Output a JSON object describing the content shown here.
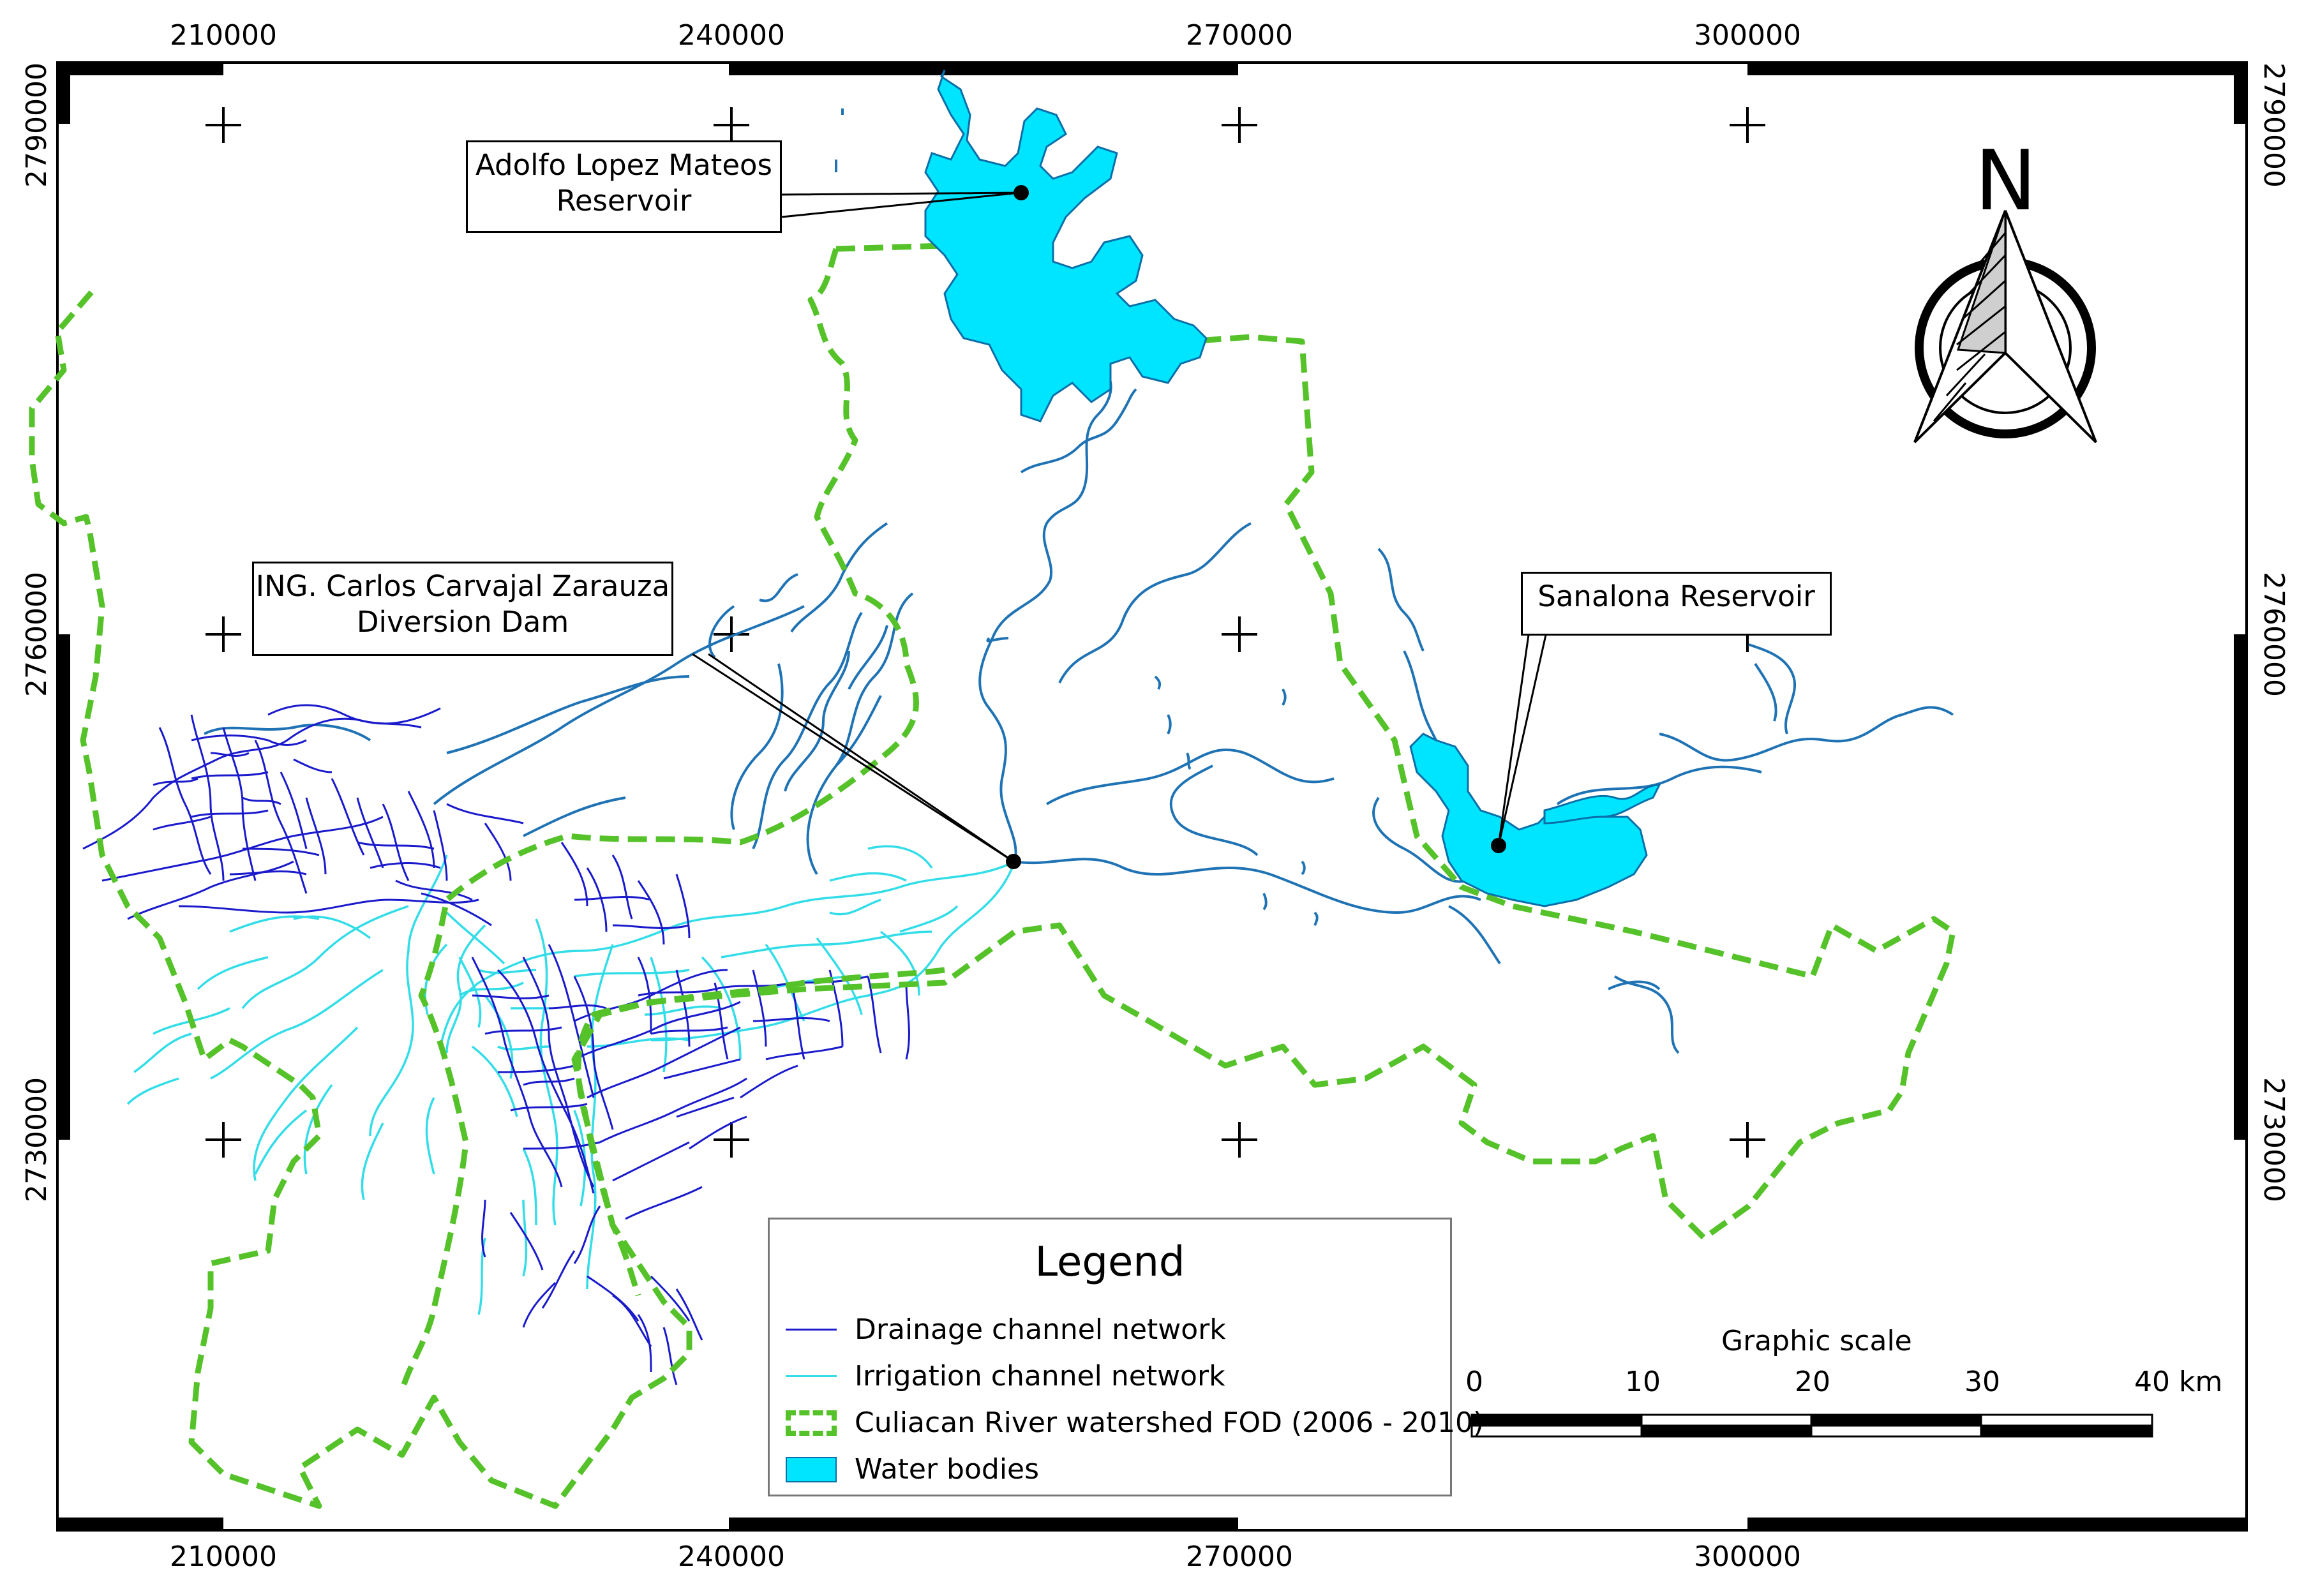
{
  "colors": {
    "drainage": "#1a1acc",
    "irrigation": "#33dde8",
    "fod_outline": "#55c22a",
    "water_fill": "#00e5ff",
    "river": "#1f73b4",
    "frame": "#000000"
  },
  "coordinates": {
    "eastings": [
      "210000",
      "240000",
      "270000",
      "300000"
    ],
    "northings": [
      "2790000",
      "2760000",
      "2730000"
    ]
  },
  "callouts": {
    "adolfo": {
      "line1": "Adolfo Lopez Mateos",
      "line2": "Reservoir"
    },
    "carvajal": {
      "line1": "ING. Carlos Carvajal Zarauza",
      "line2": "Diversion Dam"
    },
    "sanalona": {
      "line1": "Sanalona Reservoir"
    }
  },
  "legend": {
    "title": "Legend",
    "items": [
      {
        "label": "Drainage channel network",
        "icon": "drainage-line"
      },
      {
        "label": "Irrigation channel network",
        "icon": "irrigation-line"
      },
      {
        "label": "Culiacan River watershed FOD (2006 - 2010)",
        "icon": "dashed-outline"
      },
      {
        "label": "Water bodies",
        "icon": "water-fill"
      }
    ]
  },
  "scale_bar": {
    "title": "Graphic scale",
    "ticks": [
      "0",
      "10",
      "20",
      "30",
      "40 km"
    ]
  },
  "north_arrow": {
    "letter": "N",
    "icon": "north-arrow-icon"
  }
}
